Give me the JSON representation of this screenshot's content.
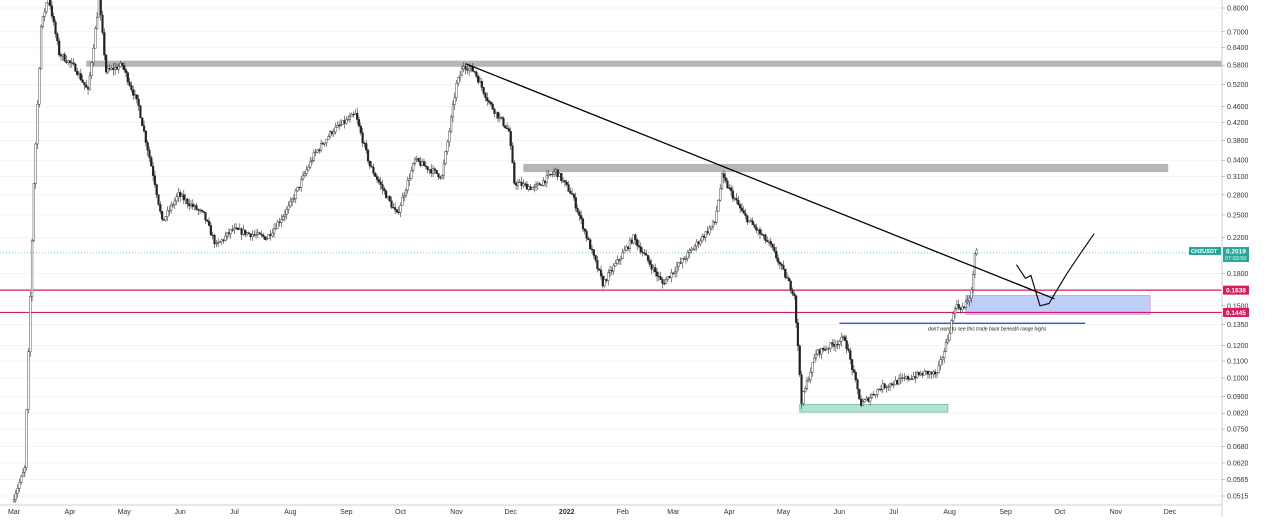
{
  "chart_data": {
    "type": "candlestick",
    "symbol": "CHZUSDT",
    "scale": "log",
    "ylim": [
      0.048,
      0.86
    ],
    "y_ticks": [
      "0.8000",
      "0.7000",
      "0.6400",
      "0.5800",
      "0.5200",
      "0.4600",
      "0.4200",
      "0.3800",
      "0.3400",
      "0.3100",
      "0.2800",
      "0.2500",
      "0.2200",
      "0.1800",
      "0.1500",
      "0.1350",
      "0.1200",
      "0.1100",
      "0.1000",
      "0.0900",
      "0.0820",
      "0.0750",
      "0.0680",
      "0.0620",
      "0.0565",
      "0.0515"
    ],
    "x_ticks": [
      "Mar",
      "Apr",
      "May",
      "Jun",
      "Jul",
      "Aug",
      "Sep",
      "Oct",
      "Nov",
      "Dec",
      "2022",
      "Feb",
      "Mar",
      "Apr",
      "May",
      "Jun",
      "Jul",
      "Aug",
      "Sep",
      "Oct",
      "Nov",
      "Dec"
    ],
    "price_series": [
      {
        "d": "2021-03-01",
        "v": 0.05
      },
      {
        "d": "2021-03-08",
        "v": 0.06
      },
      {
        "d": "2021-03-13",
        "v": 0.3
      },
      {
        "d": "2021-03-17",
        "v": 0.72
      },
      {
        "d": "2021-03-21",
        "v": 0.86
      },
      {
        "d": "2021-03-27",
        "v": 0.62
      },
      {
        "d": "2021-04-05",
        "v": 0.57
      },
      {
        "d": "2021-04-12",
        "v": 0.5
      },
      {
        "d": "2021-04-18",
        "v": 0.84
      },
      {
        "d": "2021-04-22",
        "v": 0.56
      },
      {
        "d": "2021-05-01",
        "v": 0.58
      },
      {
        "d": "2021-05-10",
        "v": 0.46
      },
      {
        "d": "2021-05-19",
        "v": 0.3
      },
      {
        "d": "2021-05-23",
        "v": 0.24
      },
      {
        "d": "2021-06-01",
        "v": 0.28
      },
      {
        "d": "2021-06-15",
        "v": 0.25
      },
      {
        "d": "2021-06-22",
        "v": 0.21
      },
      {
        "d": "2021-07-01",
        "v": 0.23
      },
      {
        "d": "2021-07-20",
        "v": 0.22
      },
      {
        "d": "2021-08-01",
        "v": 0.26
      },
      {
        "d": "2021-08-15",
        "v": 0.35
      },
      {
        "d": "2021-08-25",
        "v": 0.4
      },
      {
        "d": "2021-09-07",
        "v": 0.44
      },
      {
        "d": "2021-09-15",
        "v": 0.33
      },
      {
        "d": "2021-09-30",
        "v": 0.25
      },
      {
        "d": "2021-10-10",
        "v": 0.34
      },
      {
        "d": "2021-10-25",
        "v": 0.31
      },
      {
        "d": "2021-11-02",
        "v": 0.52
      },
      {
        "d": "2021-11-06",
        "v": 0.58
      },
      {
        "d": "2021-11-12",
        "v": 0.56
      },
      {
        "d": "2021-11-20",
        "v": 0.47
      },
      {
        "d": "2021-12-01",
        "v": 0.4
      },
      {
        "d": "2021-12-04",
        "v": 0.3
      },
      {
        "d": "2021-12-15",
        "v": 0.29
      },
      {
        "d": "2021-12-27",
        "v": 0.32
      },
      {
        "d": "2022-01-05",
        "v": 0.28
      },
      {
        "d": "2022-01-22",
        "v": 0.17
      },
      {
        "d": "2022-02-08",
        "v": 0.22
      },
      {
        "d": "2022-02-24",
        "v": 0.17
      },
      {
        "d": "2022-03-10",
        "v": 0.2
      },
      {
        "d": "2022-03-25",
        "v": 0.24
      },
      {
        "d": "2022-03-29",
        "v": 0.31
      },
      {
        "d": "2022-04-10",
        "v": 0.25
      },
      {
        "d": "2022-04-25",
        "v": 0.21
      },
      {
        "d": "2022-05-08",
        "v": 0.16
      },
      {
        "d": "2022-05-12",
        "v": 0.088
      },
      {
        "d": "2022-05-20",
        "v": 0.115
      },
      {
        "d": "2022-06-05",
        "v": 0.125
      },
      {
        "d": "2022-06-14",
        "v": 0.086
      },
      {
        "d": "2022-06-25",
        "v": 0.095
      },
      {
        "d": "2022-07-10",
        "v": 0.1
      },
      {
        "d": "2022-07-20",
        "v": 0.103
      },
      {
        "d": "2022-07-26",
        "v": 0.102
      },
      {
        "d": "2022-08-01",
        "v": 0.125
      },
      {
        "d": "2022-08-05",
        "v": 0.15
      },
      {
        "d": "2022-08-10",
        "v": 0.148
      },
      {
        "d": "2022-08-14",
        "v": 0.162
      },
      {
        "d": "2022-08-16",
        "v": 0.2019
      }
    ],
    "annotations": {
      "resistance_bands": [
        {
          "from": "2021-04-10",
          "to": "2022-12-31",
          "y_low": 0.575,
          "y_high": 0.595,
          "color": "#9e9e9e"
        },
        {
          "from": "2021-12-08",
          "to": "2022-11-30",
          "y_low": 0.318,
          "y_high": 0.333,
          "color": "#9e9e9e"
        }
      ],
      "trendline": {
        "from": {
          "d": "2021-11-06",
          "v": 0.585
        },
        "to": {
          "d": "2022-09-28",
          "v": 0.156
        },
        "color": "#000000"
      },
      "horizontal_lines": [
        {
          "y": 0.1638,
          "color": "#d81b60",
          "label": "0.1638"
        },
        {
          "y": 0.1445,
          "color": "#d81b60",
          "label": "0.1445"
        }
      ],
      "zones": [
        {
          "from": "2022-08-10",
          "to": "2022-11-20",
          "y_low": 0.143,
          "y_high": 0.159,
          "color": "#b3c6f7",
          "border": "#cf9be0"
        },
        {
          "from": "2022-05-10",
          "to": "2022-07-31",
          "y_low": 0.0825,
          "y_high": 0.0862,
          "color": "#a8dcc9",
          "border": "#6fbf9f"
        }
      ],
      "blue_line": {
        "from": "2022-06-01",
        "to": "2022-10-15",
        "y": 0.136,
        "color": "#1e40d8"
      },
      "text_note": "don't want to see this trade back beneath range highs",
      "projection": [
        {
          "d": "2022-09-07",
          "v": 0.189
        },
        {
          "d": "2022-09-12",
          "v": 0.175
        },
        {
          "d": "2022-09-15",
          "v": 0.178
        },
        {
          "d": "2022-09-20",
          "v": 0.15
        },
        {
          "d": "2022-09-25",
          "v": 0.152
        },
        {
          "d": "2022-09-28",
          "v": 0.16
        },
        {
          "d": "2022-10-05",
          "v": 0.18
        },
        {
          "d": "2022-10-12",
          "v": 0.2
        },
        {
          "d": "2022-10-20",
          "v": 0.225
        }
      ]
    },
    "price_label": {
      "symbol": "CHZUSDT",
      "value": "0.2019",
      "countdown": "07:03:50",
      "color": "#26a69a",
      "ref_line": 0.2019
    }
  }
}
